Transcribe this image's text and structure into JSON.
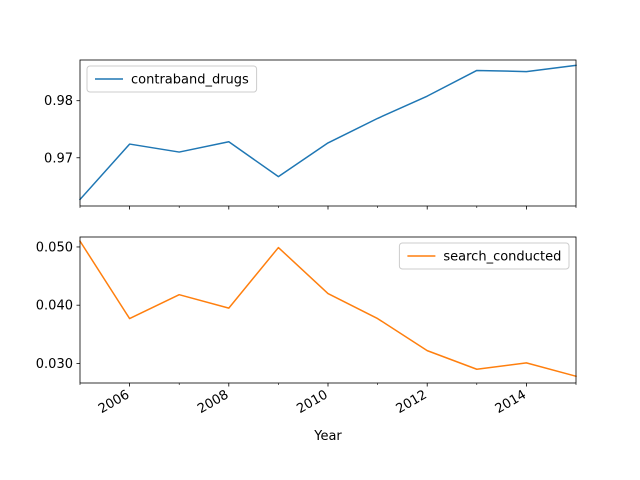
{
  "chart_data": [
    {
      "type": "line",
      "xlabel": "",
      "x": [
        2005,
        2006,
        2007,
        2008,
        2009,
        2010,
        2011,
        2012,
        2013,
        2014,
        2015
      ],
      "series": [
        {
          "name": "contraband_drugs",
          "color": "#1f77b4",
          "values": [
            0.9627,
            0.9724,
            0.971,
            0.9728,
            0.9667,
            0.9726,
            0.9769,
            0.9808,
            0.9853,
            0.9851,
            0.9862
          ]
        }
      ],
      "xlim": [
        2005,
        2015
      ],
      "ylim": [
        0.96155,
        0.98713
      ],
      "yticks": [
        0.97,
        0.98
      ],
      "ytick_labels": [
        "0.97",
        "0.98"
      ],
      "xticks": [
        2006,
        2008,
        2010,
        2012,
        2014
      ],
      "xtick_labels_visible": false,
      "legend_position": "upper left",
      "grid": false
    },
    {
      "type": "line",
      "xlabel": "Year",
      "x": [
        2005,
        2006,
        2007,
        2008,
        2009,
        2010,
        2011,
        2012,
        2013,
        2014,
        2015
      ],
      "series": [
        {
          "name": "search_conducted",
          "color": "#ff7f0e",
          "values": [
            0.051,
            0.0377,
            0.0418,
            0.0395,
            0.0499,
            0.042,
            0.0377,
            0.0322,
            0.029,
            0.0301,
            0.0278
          ]
        }
      ],
      "xlim": [
        2005,
        2015
      ],
      "ylim": [
        0.02664,
        0.05171
      ],
      "yticks": [
        0.03,
        0.04,
        0.05
      ],
      "ytick_labels": [
        "0.030",
        "0.040",
        "0.050"
      ],
      "xticks": [
        2006,
        2008,
        2010,
        2012,
        2014
      ],
      "xtick_labels": [
        "2006",
        "2008",
        "2010",
        "2012",
        "2014"
      ],
      "legend_position": "upper right",
      "grid": false
    }
  ]
}
